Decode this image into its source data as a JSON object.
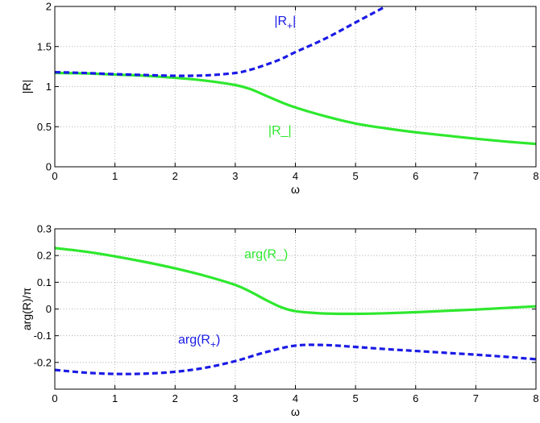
{
  "colors": {
    "green": "#2ee82e",
    "blue": "#1a1ae6",
    "grid": "#9a9a9a",
    "axis": "#000000"
  },
  "chart_data": [
    {
      "type": "line",
      "xlabel": "ω",
      "ylabel": "|R|",
      "xlim": [
        0,
        8
      ],
      "ylim": [
        0,
        2
      ],
      "xticks": [
        0,
        1,
        2,
        3,
        4,
        5,
        6,
        7,
        8
      ],
      "xtick_labels": [
        "0",
        "1",
        "2",
        "3",
        "4",
        "5",
        "6",
        "7",
        "8"
      ],
      "yticks": [
        0,
        0.5,
        1,
        1.5,
        2
      ],
      "ytick_labels": [
        "0",
        "0.5",
        "1",
        "1.5",
        "2"
      ],
      "grid": true,
      "series": [
        {
          "name": "|R_|",
          "color": "#2ee82e",
          "style": "solid",
          "x": [
            0,
            0.5,
            1,
            1.5,
            2,
            2.5,
            3,
            3.25,
            3.5,
            3.75,
            4,
            4.5,
            5,
            5.5,
            6,
            6.5,
            7,
            7.5,
            8
          ],
          "y": [
            1.17,
            1.165,
            1.15,
            1.135,
            1.11,
            1.075,
            1.02,
            0.97,
            0.89,
            0.81,
            0.74,
            0.63,
            0.54,
            0.48,
            0.43,
            0.39,
            0.35,
            0.315,
            0.285
          ]
        },
        {
          "name": "|R+|",
          "color": "#1a1ae6",
          "style": "dashed",
          "x": [
            0,
            0.5,
            1,
            1.5,
            2,
            2.5,
            3,
            3.25,
            3.5,
            3.75,
            4,
            4.5,
            5,
            5.5
          ],
          "y": [
            1.18,
            1.17,
            1.155,
            1.145,
            1.135,
            1.14,
            1.17,
            1.21,
            1.27,
            1.34,
            1.43,
            1.6,
            1.8,
            2.0
          ]
        }
      ],
      "annotations": [
        {
          "text": "|R",
          "subscript": "+",
          "suffix": "|",
          "color": "#1a1ae6",
          "x": 3.65,
          "y": 1.77
        },
        {
          "text": "|R_|",
          "subscript": "",
          "suffix": "",
          "color": "#2ee82e",
          "x": 3.55,
          "y": 0.4
        }
      ]
    },
    {
      "type": "line",
      "xlabel": "ω",
      "ylabel": "arg(R)/π",
      "xlim": [
        0,
        8
      ],
      "ylim": [
        -0.3,
        0.3
      ],
      "xticks": [
        0,
        1,
        2,
        3,
        4,
        5,
        6,
        7,
        8
      ],
      "xtick_labels": [
        "0",
        "1",
        "2",
        "3",
        "4",
        "5",
        "6",
        "7",
        "8"
      ],
      "yticks": [
        -0.2,
        -0.1,
        0,
        0.1,
        0.2,
        0.3
      ],
      "ytick_labels": [
        "-0.2",
        "-0.1",
        "0",
        "0.1",
        "0.2",
        "0.3"
      ],
      "grid": true,
      "series": [
        {
          "name": "arg(R_)",
          "color": "#2ee82e",
          "style": "solid",
          "x": [
            0,
            0.5,
            1,
            1.5,
            2,
            2.5,
            3,
            3.25,
            3.5,
            3.75,
            4,
            4.5,
            5,
            5.5,
            6,
            6.5,
            7,
            7.5,
            8
          ],
          "y": [
            0.228,
            0.215,
            0.197,
            0.176,
            0.152,
            0.124,
            0.09,
            0.065,
            0.035,
            0.008,
            -0.008,
            -0.017,
            -0.018,
            -0.016,
            -0.012,
            -0.007,
            -0.002,
            0.004,
            0.01
          ]
        },
        {
          "name": "arg(R+)",
          "color": "#1a1ae6",
          "style": "dashed",
          "x": [
            0,
            0.5,
            1,
            1.5,
            2,
            2.5,
            3,
            3.5,
            4,
            4.5,
            5,
            5.5,
            6,
            6.5,
            7,
            7.5,
            8
          ],
          "y": [
            -0.228,
            -0.238,
            -0.243,
            -0.242,
            -0.235,
            -0.22,
            -0.195,
            -0.162,
            -0.137,
            -0.135,
            -0.142,
            -0.15,
            -0.157,
            -0.164,
            -0.171,
            -0.179,
            -0.188
          ]
        }
      ],
      "annotations": [
        {
          "text": "arg(R_)",
          "subscript": "",
          "suffix": "",
          "color": "#2ee82e",
          "x": 3.15,
          "y": 0.19
        },
        {
          "text": "arg(R",
          "subscript": "+",
          "suffix": ")",
          "color": "#1a1ae6",
          "x": 2.05,
          "y": -0.13
        }
      ]
    }
  ]
}
